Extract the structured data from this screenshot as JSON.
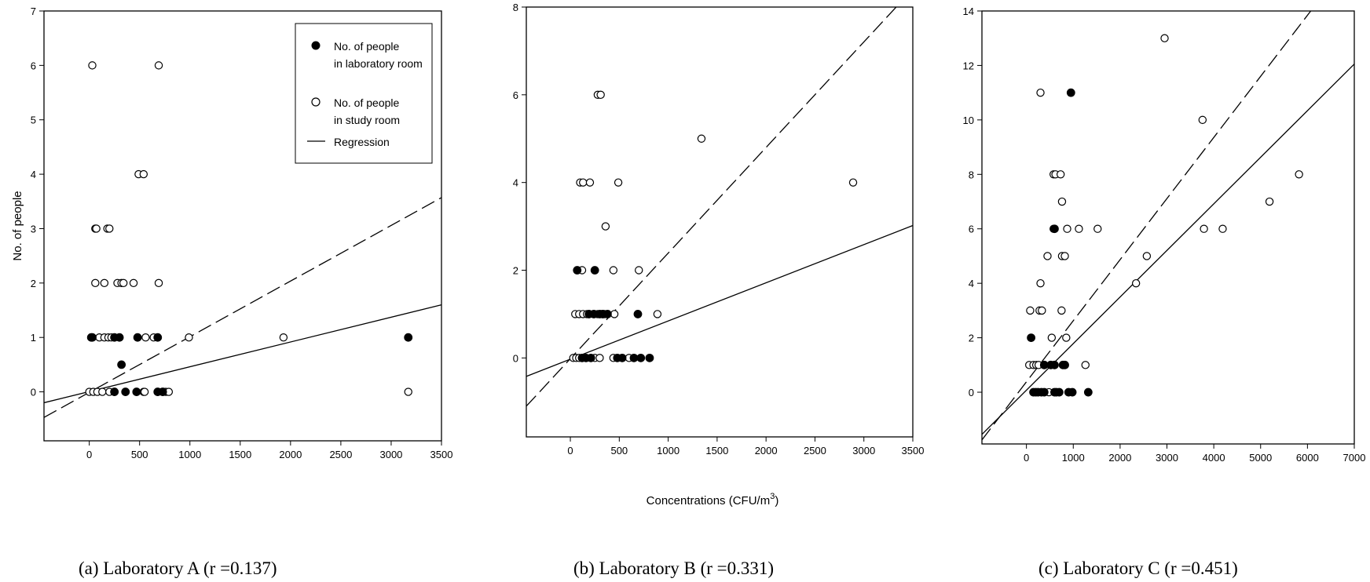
{
  "chart_data": [
    {
      "type": "scatter",
      "caption": "(a)  Laboratory A (r =0.137)",
      "ylabel": "No. of people",
      "xlabel": "",
      "xlim": [
        -450,
        3500
      ],
      "ylim": [
        -0.9,
        7
      ],
      "x_ticks": [
        "0",
        "500",
        "1000",
        "1500",
        "2000",
        "2500",
        "3000",
        "3500"
      ],
      "y_ticks": [
        "0",
        "1",
        "2",
        "3",
        "4",
        "5",
        "6",
        "7"
      ],
      "legend": {
        "position": "top-right",
        "entries": [
          {
            "marker": "filled",
            "line1": "No. of people",
            "line2": "in laboratory room"
          },
          {
            "marker": "open",
            "line1": "No. of people",
            "line2": "in study room"
          },
          {
            "marker": "line",
            "line1": "Regression",
            "line2": ""
          }
        ]
      },
      "series": [
        {
          "name": "No. of people in laboratory room",
          "marker": "filled",
          "points": [
            [
              20,
              1
            ],
            [
              30,
              1
            ],
            [
              250,
              1
            ],
            [
              300,
              1
            ],
            [
              480,
              1
            ],
            [
              680,
              1
            ],
            [
              3170,
              1
            ],
            [
              320,
              0.5
            ],
            [
              250,
              0
            ],
            [
              360,
              0
            ],
            [
              470,
              0
            ],
            [
              680,
              0
            ],
            [
              730,
              0
            ]
          ]
        },
        {
          "name": "No. of people in study room",
          "marker": "open",
          "points": [
            [
              30,
              6
            ],
            [
              690,
              6
            ],
            [
              490,
              4
            ],
            [
              540,
              4
            ],
            [
              60,
              3
            ],
            [
              70,
              3
            ],
            [
              180,
              3
            ],
            [
              200,
              3
            ],
            [
              60,
              2
            ],
            [
              150,
              2
            ],
            [
              280,
              2
            ],
            [
              320,
              2
            ],
            [
              340,
              2
            ],
            [
              440,
              2
            ],
            [
              690,
              2
            ],
            [
              100,
              1
            ],
            [
              150,
              1
            ],
            [
              190,
              1
            ],
            [
              220,
              1
            ],
            [
              560,
              1
            ],
            [
              640,
              1
            ],
            [
              990,
              1
            ],
            [
              1930,
              1
            ],
            [
              0,
              0
            ],
            [
              40,
              0
            ],
            [
              80,
              0
            ],
            [
              130,
              0
            ],
            [
              200,
              0
            ],
            [
              540,
              0
            ],
            [
              550,
              0
            ],
            [
              760,
              0
            ],
            [
              790,
              0
            ],
            [
              3170,
              0
            ]
          ]
        }
      ],
      "regression": [
        {
          "style": "solid",
          "from": [
            -450,
            -0.2
          ],
          "to": [
            3500,
            1.6
          ]
        },
        {
          "style": "dashed",
          "from": [
            -450,
            -0.47
          ],
          "to": [
            3500,
            3.57
          ]
        }
      ]
    },
    {
      "type": "scatter",
      "caption": "(b) Laboratory B (r =0.331)",
      "ylabel": "",
      "xlabel_main": "Concentrations (CFU/m",
      "xlabel_sup": "3",
      "xlabel_end": ")",
      "xlim": [
        -450,
        3500
      ],
      "ylim": [
        -1.8,
        8
      ],
      "x_ticks": [
        "0",
        "500",
        "1000",
        "1500",
        "2000",
        "2500",
        "3000",
        "3500"
      ],
      "y_ticks": [
        "0",
        "2",
        "4",
        "6",
        "8"
      ],
      "series": [
        {
          "name": "No. of people in laboratory room",
          "marker": "filled",
          "points": [
            [
              70,
              2
            ],
            [
              250,
              2
            ],
            [
              190,
              1
            ],
            [
              240,
              1
            ],
            [
              300,
              1
            ],
            [
              330,
              1
            ],
            [
              380,
              1
            ],
            [
              690,
              1
            ],
            [
              120,
              0
            ],
            [
              160,
              0
            ],
            [
              210,
              0
            ],
            [
              480,
              0
            ],
            [
              530,
              0
            ],
            [
              650,
              0
            ],
            [
              720,
              0
            ],
            [
              810,
              0
            ]
          ]
        },
        {
          "name": "No. of people in study room",
          "marker": "open",
          "points": [
            [
              280,
              6
            ],
            [
              310,
              6
            ],
            [
              1340,
              5
            ],
            [
              100,
              4
            ],
            [
              130,
              4
            ],
            [
              200,
              4
            ],
            [
              490,
              4
            ],
            [
              2890,
              4
            ],
            [
              360,
              3
            ],
            [
              120,
              2
            ],
            [
              440,
              2
            ],
            [
              700,
              2
            ],
            [
              50,
              1
            ],
            [
              90,
              1
            ],
            [
              130,
              1
            ],
            [
              170,
              1
            ],
            [
              280,
              1
            ],
            [
              340,
              1
            ],
            [
              350,
              1
            ],
            [
              450,
              1
            ],
            [
              890,
              1
            ],
            [
              30,
              0
            ],
            [
              60,
              0
            ],
            [
              90,
              0
            ],
            [
              120,
              0
            ],
            [
              250,
              0
            ],
            [
              300,
              0
            ],
            [
              440,
              0
            ],
            [
              600,
              0
            ]
          ]
        }
      ],
      "regression": [
        {
          "style": "solid",
          "from": [
            -450,
            -0.42
          ],
          "to": [
            3500,
            3.02
          ]
        },
        {
          "style": "dashed",
          "from": [
            -450,
            -1.1
          ],
          "to": [
            3330,
            8
          ]
        }
      ]
    },
    {
      "type": "scatter",
      "caption": "(c) Laboratory C (r =0.451)",
      "ylabel": "",
      "xlabel": "",
      "xlim": [
        -950,
        7000
      ],
      "ylim": [
        -1.9,
        14
      ],
      "x_ticks": [
        "0",
        "1000",
        "2000",
        "3000",
        "4000",
        "5000",
        "6000",
        "7000"
      ],
      "y_ticks": [
        "0",
        "2",
        "4",
        "6",
        "8",
        "10",
        "12",
        "14"
      ],
      "series": [
        {
          "name": "No. of people in laboratory room",
          "marker": "filled",
          "points": [
            [
              950,
              11
            ],
            [
              600,
              6
            ],
            [
              100,
              2
            ],
            [
              380,
              1
            ],
            [
              520,
              1
            ],
            [
              600,
              1
            ],
            [
              780,
              1
            ],
            [
              820,
              1
            ],
            [
              150,
              0
            ],
            [
              200,
              0
            ],
            [
              250,
              0
            ],
            [
              320,
              0
            ],
            [
              380,
              0
            ],
            [
              600,
              0
            ],
            [
              640,
              0
            ],
            [
              700,
              0
            ],
            [
              900,
              0
            ],
            [
              980,
              0
            ],
            [
              1320,
              0
            ]
          ]
        },
        {
          "name": "No. of people in study room",
          "marker": "open",
          "points": [
            [
              2950,
              13
            ],
            [
              300,
              11
            ],
            [
              3760,
              10
            ],
            [
              580,
              8
            ],
            [
              620,
              8
            ],
            [
              730,
              8
            ],
            [
              5820,
              8
            ],
            [
              760,
              7
            ],
            [
              5190,
              7
            ],
            [
              580,
              6
            ],
            [
              870,
              6
            ],
            [
              1120,
              6
            ],
            [
              1520,
              6
            ],
            [
              3790,
              6
            ],
            [
              4190,
              6
            ],
            [
              760,
              5
            ],
            [
              820,
              5
            ],
            [
              2570,
              5
            ],
            [
              450,
              5
            ],
            [
              300,
              4
            ],
            [
              2340,
              4
            ],
            [
              80,
              3
            ],
            [
              280,
              3
            ],
            [
              330,
              3
            ],
            [
              750,
              3
            ],
            [
              540,
              2
            ],
            [
              850,
              2
            ],
            [
              60,
              1
            ],
            [
              150,
              1
            ],
            [
              210,
              1
            ],
            [
              260,
              1
            ],
            [
              1260,
              1
            ],
            [
              480,
              0
            ]
          ]
        }
      ],
      "regression": [
        {
          "style": "solid",
          "from": [
            -950,
            -1.55
          ],
          "to": [
            7000,
            12.05
          ]
        },
        {
          "style": "dashed",
          "from": [
            -950,
            -1.75
          ],
          "to": [
            6070,
            14
          ]
        }
      ]
    }
  ]
}
